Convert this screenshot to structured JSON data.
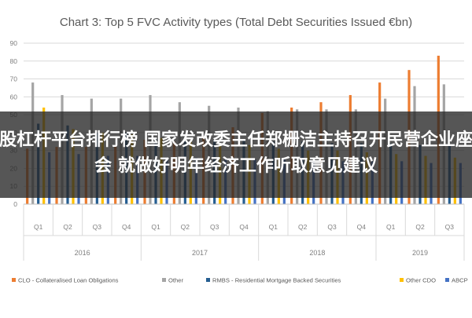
{
  "overlay_text": "炒股杠杆平台排行榜 国家发改委主任郑栅洁主持召开民营企业座谈会 就做好明年经济工作听取意见建议",
  "chart_data": {
    "type": "bar",
    "title": "Chart 3: Top 5 FVC Activity types (Total Debt Securities Issued €bn)",
    "xlabel": "",
    "ylabel": "",
    "ylim": [
      0,
      90
    ],
    "yticks": [
      0,
      10,
      20,
      30,
      40,
      50,
      60,
      70,
      80,
      90
    ],
    "grid": true,
    "legend_position": "bottom",
    "categories": [
      "Q1",
      "Q2",
      "Q3",
      "Q4",
      "Q1",
      "Q2",
      "Q3",
      "Q4",
      "Q1",
      "Q2",
      "Q3",
      "Q4",
      "Q1",
      "Q2",
      "Q3"
    ],
    "groups": [
      {
        "label": "2016",
        "start": 0,
        "end": 3
      },
      {
        "label": "2017",
        "start": 4,
        "end": 7
      },
      {
        "label": "2018",
        "start": 8,
        "end": 11
      },
      {
        "label": "2019",
        "start": 12,
        "end": 14
      }
    ],
    "series": [
      {
        "name": "CLO - Collateralised Loan Obligations",
        "color": "#ed7d31",
        "values": [
          31,
          32,
          32,
          33,
          36,
          35,
          38,
          43,
          51,
          54,
          57,
          61,
          68,
          75,
          83
        ]
      },
      {
        "name": "Other",
        "color": "#a5a5a5",
        "values": [
          68,
          61,
          59,
          59,
          61,
          57,
          55,
          54,
          52,
          53,
          53,
          53,
          59,
          66,
          67
        ]
      },
      {
        "name": "RMBS - Residential Mortgage Backed Securities",
        "color": "#255e91",
        "values": [
          45,
          44,
          40,
          40,
          37,
          37,
          36,
          36,
          35,
          35,
          34,
          34,
          34,
          33,
          33
        ]
      },
      {
        "name": "Other CDO",
        "color": "#ffc000",
        "values": [
          54,
          42,
          40,
          39,
          37,
          35,
          33,
          33,
          31,
          30,
          30,
          29,
          28,
          27,
          26
        ]
      },
      {
        "name": "ABCP",
        "color": "#4472c4",
        "values": [
          29,
          28,
          27,
          27,
          26,
          26,
          25,
          25,
          25,
          24,
          24,
          24,
          24,
          23,
          23
        ]
      }
    ]
  }
}
